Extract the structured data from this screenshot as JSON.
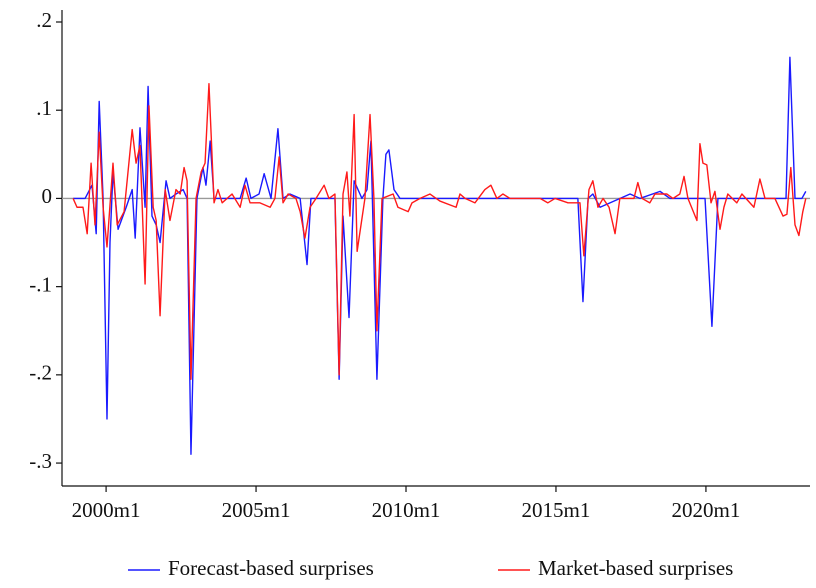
{
  "chart_data": {
    "type": "line",
    "xlim": [
      1998.53,
      2023.47
    ],
    "ylim": [
      -0.326,
      0.2136
    ],
    "xticks": [
      {
        "value": 2000,
        "label": "2000m1"
      },
      {
        "value": 2005,
        "label": "2005m1"
      },
      {
        "value": 2010,
        "label": "2010m1"
      },
      {
        "value": 2015,
        "label": "2015m1"
      },
      {
        "value": 2020,
        "label": "2020m1"
      }
    ],
    "yticks": [
      {
        "value": -0.3,
        "label": "-.3"
      },
      {
        "value": -0.2,
        "label": "-.2"
      },
      {
        "value": -0.1,
        "label": "-.1"
      },
      0,
      {
        "value": 0.1,
        "label": ".1"
      },
      {
        "value": 0.2,
        "label": ".2"
      }
    ],
    "legend": "bottom",
    "series": [
      {
        "name": "Forecast-based surprises",
        "color": "#1a1aff",
        "x": [
          1998.9,
          1999.3,
          1999.53,
          1999.67,
          1999.77,
          1999.9,
          2000.03,
          2000.13,
          2000.23,
          2000.4,
          2000.67,
          2000.87,
          2000.97,
          2001.13,
          2001.3,
          2001.4,
          2001.53,
          2001.67,
          2001.8,
          2002.0,
          2002.13,
          2002.33,
          2002.57,
          2002.7,
          2002.83,
          2003.03,
          2003.23,
          2003.33,
          2003.47,
          2003.6,
          2004.47,
          2004.67,
          2004.83,
          2005.1,
          2005.27,
          2005.5,
          2005.73,
          2005.9,
          2006.13,
          2006.47,
          2006.7,
          2006.83,
          2007.63,
          2007.77,
          2007.9,
          2008.1,
          2008.27,
          2008.4,
          2008.53,
          2008.7,
          2008.83,
          2009.03,
          2009.23,
          2009.33,
          2009.43,
          2009.6,
          2009.8,
          2015.73,
          2015.9,
          2016.07,
          2016.23,
          2016.47,
          2016.8,
          2017.47,
          2017.8,
          2018.47,
          2018.8,
          2019.97,
          2020.2,
          2020.4,
          2022.67,
          2022.8,
          2022.97,
          2023.2,
          2023.33
        ],
        "values": [
          0,
          0,
          0.015,
          -0.04,
          0.11,
          0,
          -0.25,
          -0.05,
          0.03,
          -0.035,
          -0.01,
          0.01,
          -0.045,
          0.08,
          -0.01,
          0.127,
          -0.02,
          -0.03,
          -0.05,
          0.02,
          0,
          0.005,
          0.01,
          0,
          -0.29,
          0,
          0.035,
          0.015,
          0.065,
          0,
          0,
          0.023,
          0,
          0.005,
          0.028,
          0,
          0.079,
          0,
          0.005,
          0,
          -0.075,
          0,
          0,
          -0.205,
          -0.02,
          -0.135,
          0.02,
          0.01,
          0,
          0.01,
          0.065,
          -0.205,
          0,
          0.05,
          0.055,
          0.01,
          0,
          0,
          -0.117,
          0,
          0.005,
          -0.01,
          -0.005,
          0.005,
          0,
          0.008,
          0,
          0,
          -0.145,
          0,
          0,
          0.16,
          0,
          0,
          0.008
        ]
      },
      {
        "name": "Market-based surprises",
        "color": "#ff1a1a",
        "x": [
          1998.9,
          1999.03,
          1999.23,
          1999.37,
          1999.5,
          1999.63,
          1999.77,
          1999.9,
          2000.03,
          2000.23,
          2000.37,
          2000.6,
          2000.87,
          2001.0,
          2001.13,
          2001.3,
          2001.43,
          2001.57,
          2001.67,
          2001.8,
          2001.97,
          2002.13,
          2002.33,
          2002.47,
          2002.6,
          2002.7,
          2002.83,
          2003.0,
          2003.17,
          2003.3,
          2003.43,
          2003.6,
          2003.73,
          2003.87,
          2004.2,
          2004.47,
          2004.63,
          2004.8,
          2005.13,
          2005.47,
          2005.63,
          2005.77,
          2005.9,
          2006.07,
          2006.33,
          2006.47,
          2006.63,
          2006.8,
          2007.0,
          2007.27,
          2007.43,
          2007.63,
          2007.77,
          2007.9,
          2008.03,
          2008.13,
          2008.27,
          2008.37,
          2008.5,
          2008.63,
          2008.8,
          2008.93,
          2009.03,
          2009.2,
          2009.57,
          2009.73,
          2010.07,
          2010.2,
          2010.47,
          2010.8,
          2011.13,
          2011.67,
          2011.8,
          2011.97,
          2012.3,
          2012.63,
          2012.83,
          2013.03,
          2013.23,
          2013.47,
          2014.47,
          2014.73,
          2014.97,
          2015.4,
          2015.8,
          2015.93,
          2016.1,
          2016.23,
          2016.4,
          2016.57,
          2016.77,
          2016.97,
          2017.13,
          2017.6,
          2017.73,
          2017.87,
          2018.13,
          2018.3,
          2018.7,
          2018.9,
          2019.13,
          2019.27,
          2019.4,
          2019.7,
          2019.8,
          2019.9,
          2020.03,
          2020.17,
          2020.3,
          2020.47,
          2020.6,
          2020.73,
          2021.03,
          2021.2,
          2021.6,
          2021.8,
          2021.97,
          2022.3,
          2022.57,
          2022.7,
          2022.83,
          2022.97,
          2023.1,
          2023.23,
          2023.33
        ],
        "values": [
          0,
          -0.01,
          -0.01,
          -0.04,
          0.04,
          -0.03,
          0.075,
          -0.01,
          -0.055,
          0.04,
          -0.03,
          -0.015,
          0.078,
          0.04,
          0.06,
          -0.097,
          0.105,
          -0.01,
          -0.025,
          -0.133,
          0.01,
          -0.025,
          0.01,
          0.005,
          0.035,
          0.02,
          -0.205,
          0,
          0.03,
          0.04,
          0.13,
          -0.005,
          0.01,
          -0.005,
          0.005,
          -0.01,
          0.015,
          -0.005,
          -0.005,
          -0.01,
          0,
          0.047,
          -0.005,
          0.005,
          0,
          -0.015,
          -0.045,
          -0.01,
          0,
          0.015,
          0,
          0.005,
          -0.2,
          0.005,
          0.03,
          -0.02,
          0.095,
          -0.06,
          -0.03,
          0,
          0.095,
          0,
          -0.15,
          0,
          0.005,
          -0.01,
          -0.015,
          -0.005,
          0,
          0.005,
          -0.003,
          -0.01,
          0.005,
          0,
          -0.005,
          0.01,
          0.015,
          0,
          0.005,
          0,
          0,
          -0.005,
          0,
          -0.005,
          -0.005,
          -0.065,
          0.01,
          0.02,
          -0.01,
          0,
          -0.01,
          -0.04,
          0,
          0,
          0.018,
          0,
          -0.005,
          0.005,
          0.005,
          0,
          0.005,
          0.025,
          0,
          -0.025,
          0.062,
          0.04,
          0.038,
          -0.005,
          0.008,
          -0.035,
          -0.01,
          0.005,
          -0.005,
          0.005,
          -0.01,
          0.022,
          0,
          0,
          -0.02,
          -0.018,
          0.035,
          -0.03,
          -0.042,
          -0.015,
          0
        ]
      }
    ]
  }
}
